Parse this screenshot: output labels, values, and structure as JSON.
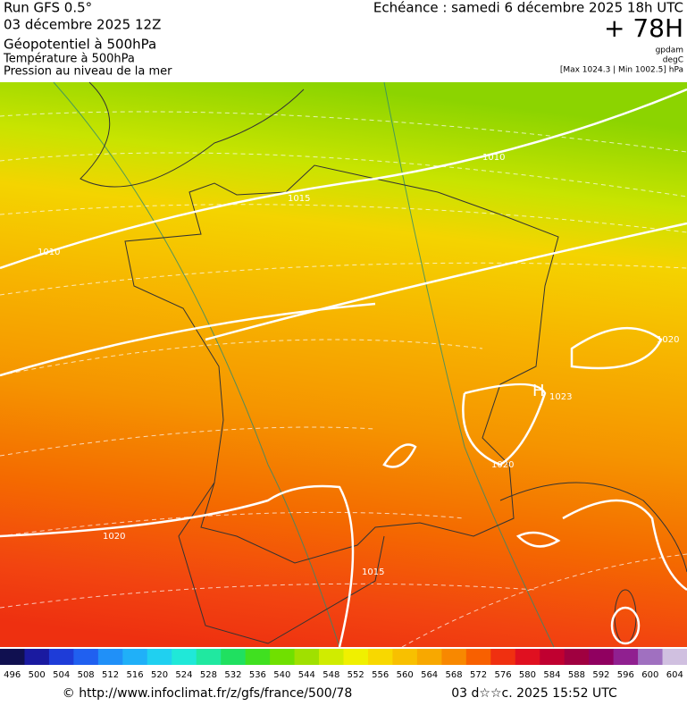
{
  "header": {
    "run": "Run GFS 0.5°",
    "date": "03 décembre 2025 12Z",
    "field1": "Géopotentiel à 500hPa",
    "field2": "Température à 500hPa",
    "field3": "Pression au niveau de la mer",
    "valid": "Echéance : samedi 6 décembre 2025 18h UTC",
    "lead": "+ 78H",
    "unit1": "gpdam",
    "unit2": "degC",
    "range": "[Max 1024.3 | Min 1002.5] hPa"
  },
  "map": {
    "labels": [
      "1010",
      "1015",
      "1010",
      "1020",
      "1023",
      "H",
      "1020",
      "1015",
      "1020"
    ]
  },
  "colorbar": {
    "levels": [
      496,
      500,
      504,
      508,
      512,
      516,
      520,
      524,
      528,
      532,
      536,
      540,
      544,
      548,
      552,
      556,
      560,
      564,
      568,
      572,
      576,
      580,
      584,
      588,
      592,
      596,
      600,
      604
    ],
    "colors": [
      "#101050",
      "#1a1aa0",
      "#1e3cd8",
      "#2060f0",
      "#2090f8",
      "#20b0f8",
      "#20d0f0",
      "#20e8d8",
      "#20e8a0",
      "#20e060",
      "#40e020",
      "#70e000",
      "#a0e000",
      "#d0ec00",
      "#f0f000",
      "#f8d800",
      "#f8c000",
      "#f8a800",
      "#f88800",
      "#f86000",
      "#f03010",
      "#e01020",
      "#c00030",
      "#a00040",
      "#900060",
      "#902090",
      "#a070c0",
      "#d0c0e0"
    ]
  },
  "footer": {
    "url": "© http://www.infoclimat.fr/z/gfs/france/500/78",
    "stamp": "03 d☆☆c. 2025 15:52 UTC"
  }
}
